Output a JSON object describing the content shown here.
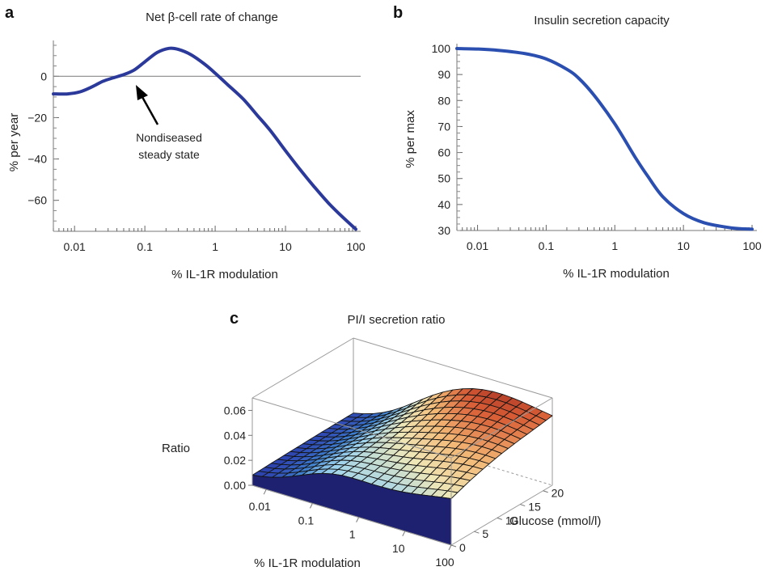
{
  "chart_data": [
    {
      "panel": "a",
      "type": "line",
      "title": "Net β-cell rate of change",
      "xlabel": "% IL-1R modulation",
      "ylabel": "% per year",
      "xscale": "log",
      "xlim": [
        0.005,
        100
      ],
      "ylim": [
        -75,
        15
      ],
      "xticks": [
        0.01,
        0.1,
        1,
        10,
        100
      ],
      "xtick_labels": [
        "0.01",
        "0.1",
        "1",
        "10",
        "100"
      ],
      "yticks": [
        0,
        -20,
        -40,
        -60
      ],
      "ytick_labels": [
        "0",
        "−20",
        "−40",
        "−60"
      ],
      "reference_line_y": 0,
      "annotation": {
        "lines": [
          "Nondiseased",
          "steady state"
        ],
        "x": 0.05,
        "y": 1
      },
      "line_color": "#2b3a9a",
      "series": [
        {
          "x": [
            0.005,
            0.008,
            0.012,
            0.018,
            0.025,
            0.035,
            0.05,
            0.07,
            0.1,
            0.15,
            0.22,
            0.3,
            0.45,
            0.7,
            1,
            1.5,
            2.5,
            4,
            6,
            10,
            16,
            25,
            40,
            60,
            100
          ],
          "y": [
            -8.5,
            -8.5,
            -7.5,
            -5,
            -2.5,
            -0.8,
            0.8,
            3,
            7,
            11.5,
            13.5,
            13,
            10.5,
            6,
            1.5,
            -4,
            -11,
            -19,
            -26,
            -36,
            -45,
            -53,
            -61,
            -67,
            -74
          ]
        }
      ]
    },
    {
      "panel": "b",
      "type": "line",
      "title": "Insulin secretion capacity",
      "xlabel": "% IL-1R modulation",
      "ylabel": "% per max",
      "xscale": "log",
      "xlim": [
        0.005,
        100
      ],
      "ylim": [
        30,
        100
      ],
      "xticks": [
        0.01,
        0.1,
        1,
        10,
        100
      ],
      "xtick_labels": [
        "0.01",
        "0.1",
        "1",
        "10",
        "100"
      ],
      "yticks": [
        30,
        40,
        50,
        60,
        70,
        80,
        90,
        100
      ],
      "ytick_labels": [
        "30",
        "40",
        "50",
        "60",
        "70",
        "80",
        "90",
        "100"
      ],
      "line_color": "#2b4fb0",
      "series": [
        {
          "x": [
            0.005,
            0.01,
            0.02,
            0.05,
            0.1,
            0.2,
            0.3,
            0.5,
            1,
            2,
            3,
            5,
            10,
            20,
            50,
            100
          ],
          "y": [
            100,
            99.8,
            99.3,
            98,
            96,
            92,
            88.5,
            82,
            71,
            58,
            51,
            43,
            36.5,
            33,
            31,
            30.5
          ]
        }
      ]
    },
    {
      "panel": "c",
      "type": "surface",
      "title": "PI/I secretion ratio",
      "xlabel": "% IL-1R modulation",
      "ylabel": "Glucose (mmol/l)",
      "zlabel": "Ratio",
      "xscale": "log",
      "xticks": [
        0.01,
        0.1,
        1,
        10,
        100
      ],
      "xtick_labels": [
        "0.01",
        "0.1",
        "1",
        "10",
        "100"
      ],
      "yticks": [
        0,
        5,
        10,
        15,
        20
      ],
      "ytick_labels": [
        "0",
        "5",
        "10",
        "15",
        "20"
      ],
      "zticks": [
        0.0,
        0.02,
        0.04,
        0.06
      ],
      "ztick_labels": [
        "0.00",
        "0.02",
        "0.04",
        "0.06"
      ],
      "zlim": [
        0,
        0.07
      ],
      "colormap": [
        "#27237a",
        "#2d45b0",
        "#3d7fd0",
        "#9fd4ee",
        "#efe7b7",
        "#f3b875",
        "#d85c35",
        "#8c1b1b"
      ]
    }
  ]
}
